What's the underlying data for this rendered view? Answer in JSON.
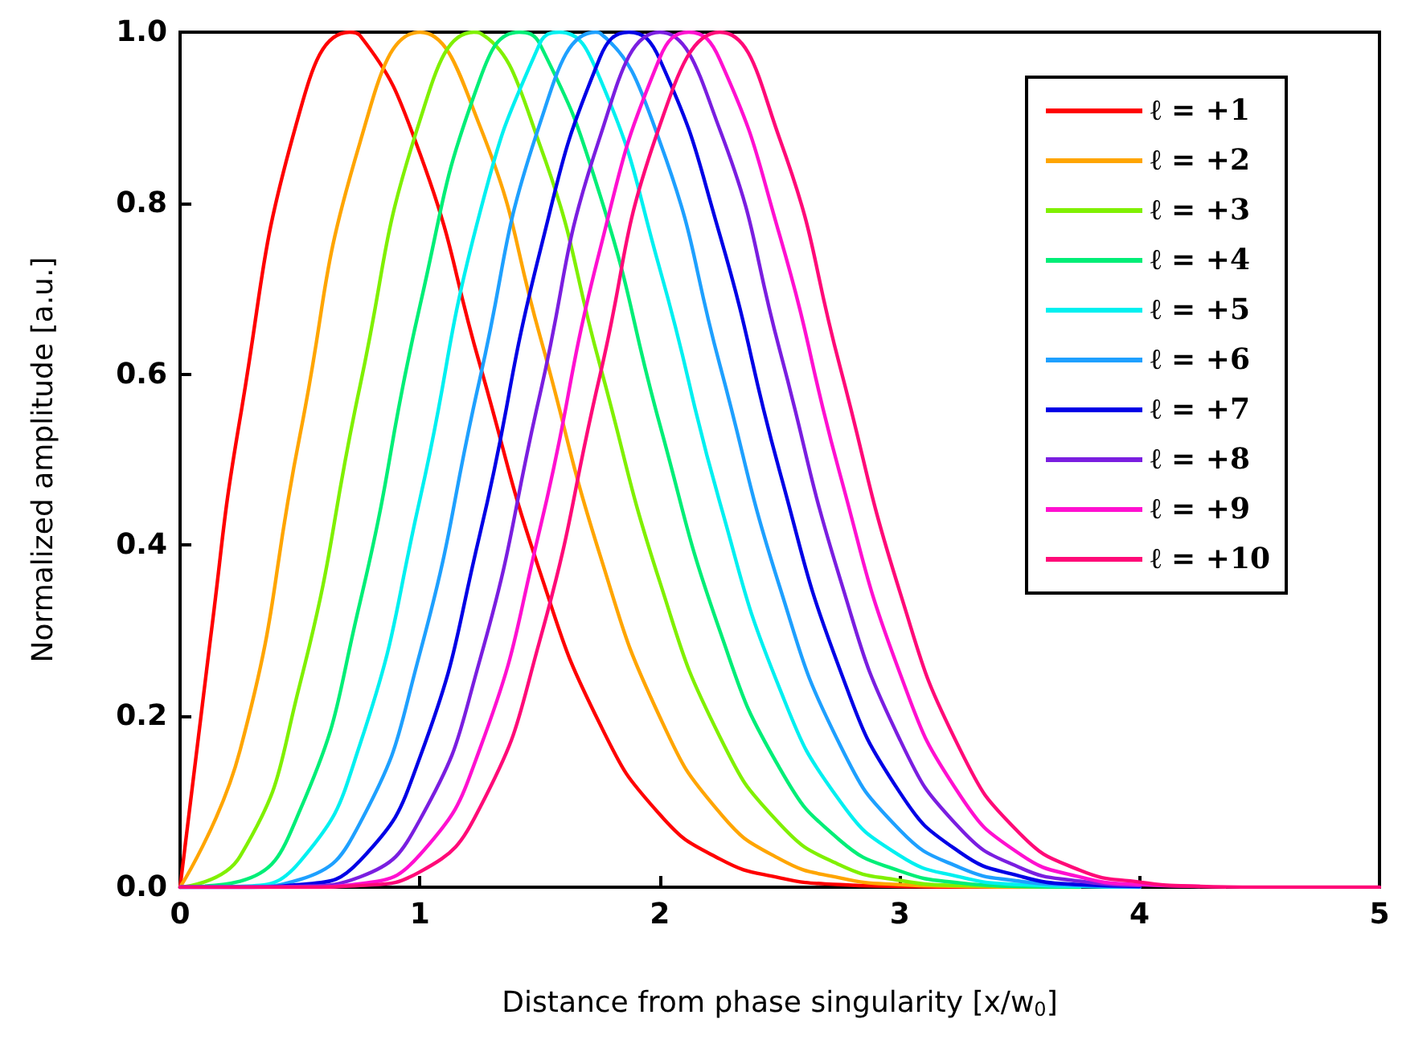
{
  "chart_data": {
    "type": "line",
    "xlabel": "Distance from phase singularity [x/w$_{0}$]",
    "ylabel": "Normalized amplitude [a.u.]",
    "x": [
      0,
      0.25,
      0.5,
      0.75,
      1,
      1.25,
      1.5,
      1.75,
      2,
      2.25,
      2.5,
      2.75,
      3,
      3.25,
      3.5,
      3.75,
      4,
      4.25,
      4.5,
      5
    ],
    "series": [
      {
        "name": "ℓ = +1",
        "color": "#ff0000",
        "x": [
          0,
          0.125,
          0.25,
          0.5,
          0.707,
          0.75,
          1,
          1.25,
          1.5,
          1.75,
          2,
          2.25,
          2.5,
          2.75,
          3,
          3.25,
          3.5
        ],
        "values": [
          0,
          0.287,
          0.548,
          0.908,
          1.0,
          0.996,
          0.858,
          0.611,
          0.369,
          0.191,
          0.085,
          0.033,
          0.011,
          0.003,
          0.001,
          0,
          0
        ]
      },
      {
        "name": "ℓ = +2",
        "color": "#ffa500",
        "x": [
          0,
          0.25,
          0.5,
          0.75,
          1,
          1.25,
          1.5,
          1.75,
          2,
          2.25,
          2.5,
          2.75,
          3,
          3.25,
          3.5,
          3.75
        ],
        "values": [
          0,
          0.16,
          0.529,
          0.871,
          1.0,
          0.89,
          0.645,
          0.389,
          0.199,
          0.087,
          0.033,
          0.011,
          0.003,
          0.001,
          0,
          0
        ]
      },
      {
        "name": "ℓ = +3",
        "color": "#80f000",
        "x": [
          0,
          0.25,
          0.5,
          0.75,
          1,
          1.225,
          1.25,
          1.5,
          1.75,
          2,
          2.25,
          2.5,
          2.75,
          3,
          3.25,
          3.5,
          3.75
        ],
        "values": [
          0,
          0.036,
          0.238,
          0.586,
          0.897,
          1.0,
          0.999,
          0.868,
          0.611,
          0.357,
          0.176,
          0.074,
          0.026,
          0.008,
          0.002,
          0.001,
          0
        ]
      },
      {
        "name": "ℓ = +4",
        "color": "#00ee77",
        "x": [
          0,
          0.25,
          0.5,
          0.75,
          1,
          1.25,
          1.414,
          1.5,
          1.75,
          2,
          2.25,
          2.5,
          2.75,
          3,
          3.25,
          3.5,
          3.75
        ],
        "values": [
          0,
          0.007,
          0.09,
          0.333,
          0.68,
          0.945,
          1.0,
          0.986,
          0.81,
          0.541,
          0.3,
          0.139,
          0.055,
          0.019,
          0.005,
          0.001,
          0
        ]
      },
      {
        "name": "ℓ = +5",
        "color": "#00f0f0",
        "x": [
          0,
          0.25,
          0.5,
          0.75,
          1,
          1.25,
          1.5,
          1.581,
          1.75,
          2,
          2.25,
          2.5,
          2.75,
          3,
          3.25,
          3.5,
          3.75,
          4
        ],
        "values": [
          0,
          0.001,
          0.03,
          0.167,
          0.454,
          0.789,
          0.987,
          1.0,
          0.946,
          0.723,
          0.45,
          0.232,
          0.101,
          0.037,
          0.012,
          0.003,
          0.001,
          0
        ]
      },
      {
        "name": "ℓ = +6",
        "color": "#1ea0ff",
        "x": [
          0,
          0.25,
          0.5,
          0.75,
          1,
          1.25,
          1.5,
          1.732,
          1.75,
          2,
          2.25,
          2.5,
          2.75,
          3,
          3.25,
          3.5,
          3.75,
          4
        ],
        "values": [
          0,
          0,
          0.009,
          0.075,
          0.274,
          0.595,
          0.893,
          1.0,
          0.999,
          0.872,
          0.611,
          0.351,
          0.167,
          0.067,
          0.023,
          0.007,
          0.002,
          0
        ]
      },
      {
        "name": "ℓ = +7",
        "color": "#0000e6",
        "x": [
          0,
          0.25,
          0.5,
          0.75,
          1,
          1.25,
          1.5,
          1.75,
          1.871,
          2,
          2.25,
          2.5,
          2.75,
          3,
          3.25,
          3.5,
          3.75,
          4
        ],
        "values": [
          0,
          0,
          0.003,
          0.031,
          0.152,
          0.413,
          0.743,
          0.97,
          1.0,
          0.968,
          0.763,
          0.486,
          0.255,
          0.111,
          0.041,
          0.013,
          0.003,
          0.001
        ]
      },
      {
        "name": "ℓ = +8",
        "color": "#7a1ee0",
        "x": [
          0,
          0.25,
          0.5,
          0.75,
          1,
          1.25,
          1.5,
          1.75,
          2,
          2.25,
          2.5,
          2.75,
          3,
          3.25,
          3.5,
          3.75,
          4
        ],
        "values": [
          0,
          0,
          0.001,
          0.012,
          0.079,
          0.266,
          0.576,
          0.877,
          1.0,
          0.886,
          0.628,
          0.362,
          0.173,
          0.069,
          0.023,
          0.007,
          0.002
        ]
      },
      {
        "name": "ℓ = +9",
        "color": "#ff10d0",
        "x": [
          0,
          0.25,
          0.5,
          0.75,
          1,
          1.25,
          1.5,
          1.75,
          2,
          2.121,
          2.25,
          2.5,
          2.75,
          3,
          3.25,
          3.5,
          3.75,
          4,
          4.25
        ],
        "values": [
          0,
          0,
          0,
          0.004,
          0.038,
          0.162,
          0.419,
          0.745,
          0.97,
          1.0,
          0.968,
          0.762,
          0.484,
          0.251,
          0.108,
          0.039,
          0.012,
          0.003,
          0.001
        ]
      },
      {
        "name": "ℓ = +10",
        "color": "#ff0a78",
        "values": [
          0,
          0,
          0,
          0.002,
          0.018,
          0.093,
          0.289,
          0.598,
          0.891,
          1.0,
          0.875,
          0.61,
          0.346,
          0.162,
          0.063,
          0.02,
          0.006,
          0.001,
          0,
          0
        ]
      }
    ],
    "xlim": [
      0,
      5
    ],
    "xticks": [
      0,
      1,
      2,
      3,
      4,
      5
    ],
    "ylim": [
      0,
      1
    ],
    "yticks": [
      {
        "value": 0,
        "label": "0.0"
      },
      0.2,
      0.4,
      0.6,
      0.8,
      {
        "value": 1,
        "label": "1.0"
      }
    ],
    "legend": "top right",
    "grid": false,
    "marker": "none",
    "line_style": "solid"
  }
}
